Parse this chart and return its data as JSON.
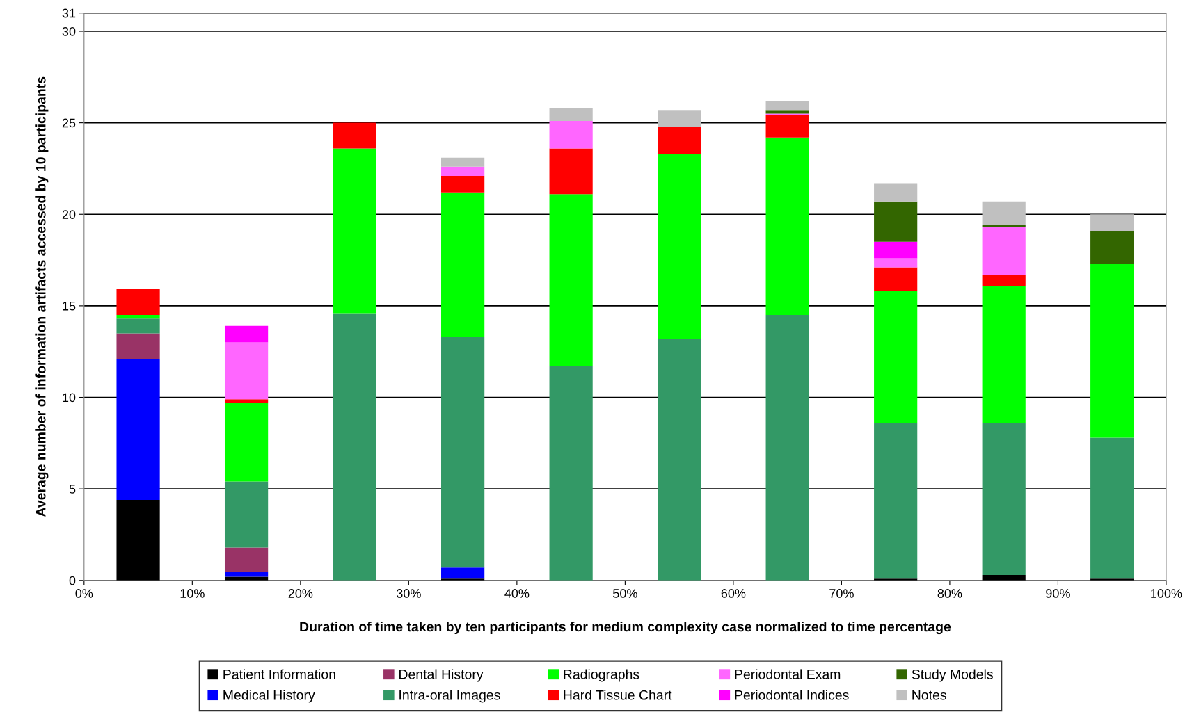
{
  "chart_data": {
    "type": "bar",
    "stacked": true,
    "xlabel": "Duration of time taken by ten participants for medium complexity case normalized to time percentage",
    "ylabel": "Average number of information artifacts accessed by 10 participants",
    "x": [
      5,
      15,
      25,
      35,
      45,
      55,
      65,
      75,
      85,
      95
    ],
    "xlim": [
      0,
      100
    ],
    "xticks": [
      {
        "value": 0,
        "label": "0%"
      },
      {
        "value": 10,
        "label": "10%"
      },
      {
        "value": 20,
        "label": "20%"
      },
      {
        "value": 30,
        "label": "30%"
      },
      {
        "value": 40,
        "label": "40%"
      },
      {
        "value": 50,
        "label": "50%"
      },
      {
        "value": 60,
        "label": "60%"
      },
      {
        "value": 70,
        "label": "70%"
      },
      {
        "value": 80,
        "label": "80%"
      },
      {
        "value": 90,
        "label": "90%"
      },
      {
        "value": 100,
        "label": "100%"
      }
    ],
    "ylim": [
      0,
      31
    ],
    "yticks": [
      0,
      5,
      10,
      15,
      20,
      25,
      30,
      31
    ],
    "grid": "y",
    "legend": "bottom",
    "series": [
      {
        "name": "Patient Information",
        "color": "#000000",
        "values": [
          4.4,
          0.2,
          null,
          0.1,
          null,
          null,
          null,
          0.1,
          0.3,
          0.1
        ]
      },
      {
        "name": "Medical History",
        "color": "#0000ff",
        "values": [
          7.7,
          0.25,
          null,
          0.6,
          null,
          null,
          null,
          null,
          null,
          null
        ]
      },
      {
        "name": "Dental History",
        "color": "#993366",
        "values": [
          1.4,
          1.35,
          null,
          null,
          null,
          null,
          null,
          null,
          null,
          null
        ]
      },
      {
        "name": "Intra-oral Images",
        "color": "#339966",
        "values": [
          0.8,
          3.6,
          14.6,
          12.6,
          11.7,
          13.2,
          14.5,
          8.5,
          8.3,
          7.7
        ]
      },
      {
        "name": "Radiographs",
        "color": "#00ff00",
        "values": [
          0.2,
          4.3,
          9.0,
          7.9,
          9.4,
          10.1,
          9.7,
          7.2,
          7.5,
          9.5
        ]
      },
      {
        "name": "Hard Tissue Chart",
        "color": "#ff0000",
        "values": [
          1.45,
          0.2,
          1.4,
          0.9,
          2.5,
          1.5,
          1.2,
          1.3,
          0.6,
          null
        ]
      },
      {
        "name": "Periodontal Exam",
        "color": "#ff66ff",
        "values": [
          null,
          3.1,
          null,
          0.5,
          1.5,
          null,
          0.1,
          0.5,
          2.6,
          null
        ]
      },
      {
        "name": "Periodontal Indices",
        "color": "#ff00ff",
        "values": [
          null,
          0.9,
          null,
          null,
          null,
          null,
          null,
          0.9,
          null,
          null
        ]
      },
      {
        "name": "Study Models",
        "color": "#336600",
        "values": [
          null,
          null,
          null,
          null,
          null,
          null,
          0.2,
          2.2,
          0.1,
          1.8
        ]
      },
      {
        "name": "Notes",
        "color": "#c0c0c0",
        "values": [
          null,
          null,
          null,
          0.5,
          0.7,
          0.9,
          0.5,
          1.0,
          1.3,
          0.9
        ]
      }
    ]
  }
}
